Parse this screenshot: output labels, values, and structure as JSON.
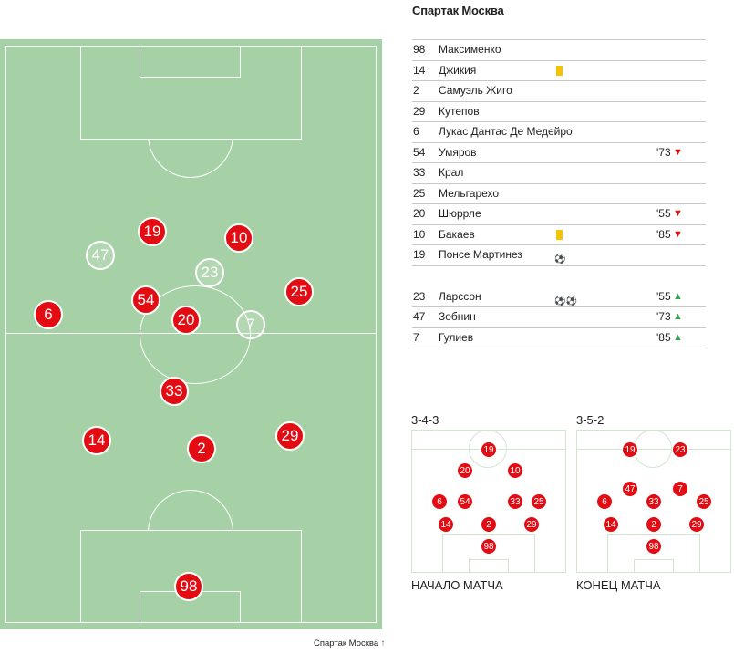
{
  "team_name": "Спартак Москва",
  "roster": {
    "starters": [
      {
        "num": "98",
        "name": "Максименко",
        "card": false,
        "goals": "",
        "minute": "",
        "dir": ""
      },
      {
        "num": "14",
        "name": "Джикия",
        "card": true,
        "goals": "",
        "minute": "",
        "dir": ""
      },
      {
        "num": "2",
        "name": "Самуэль Жиго",
        "card": false,
        "goals": "",
        "minute": "",
        "dir": ""
      },
      {
        "num": "29",
        "name": "Кутепов",
        "card": false,
        "goals": "",
        "minute": "",
        "dir": ""
      },
      {
        "num": "6",
        "name": "Лукас Дантас Де Медейро",
        "card": false,
        "goals": "",
        "minute": "",
        "dir": ""
      },
      {
        "num": "54",
        "name": "Умяров",
        "card": false,
        "goals": "",
        "minute": "'73",
        "dir": "out"
      },
      {
        "num": "33",
        "name": "Крал",
        "card": false,
        "goals": "",
        "minute": "",
        "dir": ""
      },
      {
        "num": "25",
        "name": "Мельгарехо",
        "card": false,
        "goals": "",
        "minute": "",
        "dir": ""
      },
      {
        "num": "20",
        "name": "Шюррле",
        "card": false,
        "goals": "",
        "minute": "'55",
        "dir": "out"
      },
      {
        "num": "10",
        "name": "Бакаев",
        "card": true,
        "goals": "",
        "minute": "'85",
        "dir": "out"
      },
      {
        "num": "19",
        "name": "Понсе Мартинез",
        "card": false,
        "goals": "⚽",
        "minute": "",
        "dir": ""
      }
    ],
    "subs": [
      {
        "num": "23",
        "name": "Ларссон",
        "card": false,
        "goals": "⚽⚽",
        "minute": "'55",
        "dir": "in"
      },
      {
        "num": "47",
        "name": "Зобнин",
        "card": false,
        "goals": "",
        "minute": "'73",
        "dir": "in"
      },
      {
        "num": "7",
        "name": "Гулиев",
        "card": false,
        "goals": "",
        "minute": "'85",
        "dir": "in"
      }
    ]
  },
  "pitch": {
    "starters": [
      "19",
      "10",
      "54",
      "25",
      "6",
      "20",
      "33",
      "14",
      "2",
      "29",
      "98"
    ],
    "subs": [
      "47",
      "23",
      "7"
    ]
  },
  "formations": {
    "start": {
      "label": "3-4-3",
      "caption": "НАЧАЛО МАТЧА",
      "players": [
        "19",
        "20",
        "10",
        "6",
        "54",
        "33",
        "25",
        "14",
        "2",
        "29",
        "98"
      ]
    },
    "end": {
      "label": "3-5-2",
      "caption": "КОНЕЦ МАТЧА",
      "players": [
        "19",
        "23",
        "47",
        "7",
        "6",
        "33",
        "25",
        "14",
        "2",
        "29",
        "98"
      ]
    }
  },
  "legend": {
    "label": "Спартак Москва",
    "arrow": "↑"
  },
  "icons": {
    "sub_out": "chevron-down-icon",
    "sub_in": "chevron-up-icon",
    "card": "yellow-card-icon",
    "goal": "ball-icon"
  },
  "colors": {
    "pitch": "#a6d1a6",
    "player": "#e30c13",
    "card": "#f5c400",
    "sub_out": "#e30c13",
    "sub_in": "#33a852"
  }
}
